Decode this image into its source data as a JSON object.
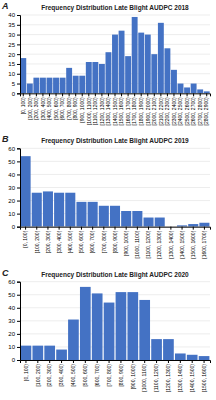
{
  "chart_data": [
    {
      "type": "bar",
      "title": "Frequency Distribution Late Blight AUDPC 2018",
      "annotations": [
        "A"
      ],
      "categories": [
        "[0, 100)",
        "[100, 200)",
        "[200, 300)",
        "[300, 400)",
        "[400, 500)",
        "[500, 600)",
        "[600, 700)",
        "[700, 800)",
        "[800, 900)",
        "[900, 1000)",
        "[1000, 1100)",
        "[1100, 1200)",
        "[1200, 1300)",
        "[1300, 1400)",
        "[1400, 1500)",
        "[1500, 1600)",
        "[1600, 1700)",
        "[1700, 1800)",
        "[1800, 1900)",
        "[1900, 2000)",
        "[2000, 2100)",
        "[2100, 2200)",
        "[2200, 2300)",
        "[2300, 2400)",
        "[2400, 2500)",
        "[2500, 2600)",
        "[2600, 2700)",
        "[2700, 2800)",
        "[2800, 2900)"
      ],
      "values": [
        18,
        5,
        8,
        8,
        8,
        8,
        8,
        13,
        9,
        9,
        16,
        16,
        15,
        21,
        30,
        32,
        19,
        39,
        31,
        30,
        20,
        36,
        23,
        12,
        5,
        3,
        5,
        2,
        1
      ],
      "color": "#4472C4",
      "ylim": [
        0,
        40
      ],
      "yticks": [
        0,
        5,
        10,
        15,
        20,
        25,
        30,
        35,
        40
      ],
      "grid": true
    },
    {
      "type": "bar",
      "title": "Frequency Distribution Late Blight AUDPC 2019",
      "annotations": [
        "B"
      ],
      "categories": [
        "[0, 100)",
        "[100, 200)",
        "[200, 300)",
        "[300, 400)",
        "[400, 500)",
        "[500, 600)",
        "[600, 700)",
        "[700, 800)",
        "[800, 900)",
        "[900, 1000)",
        "[1000, 1100)",
        "[1100, 1200)",
        "[1200, 1300)",
        "[1300, 1400)",
        "[1400, 1500)",
        "[1500, 1600)",
        "[1600, 1700)"
      ],
      "values": [
        54,
        26,
        27,
        26,
        26,
        19,
        19,
        16,
        16,
        12,
        12,
        7,
        7,
        0,
        1,
        2,
        3
      ],
      "color": "#4472C4",
      "ylim": [
        0,
        60
      ],
      "yticks": [
        0,
        10,
        20,
        30,
        40,
        50,
        60
      ],
      "grid": true
    },
    {
      "type": "bar",
      "title": "Frequency Distribution Late Blight AUDPC 2020",
      "annotations": [
        "C"
      ],
      "categories": [
        "[0, 100)",
        "[100, 200)",
        "[200, 300)",
        "[300, 400)",
        "[400, 500)",
        "[500, 600)",
        "[600, 700)",
        "[700, 800)",
        "[800, 900)",
        "[900, 1000)",
        "[1000, 1100)",
        "[1100, 1200)",
        "[1200, 1300)",
        "[1300, 1400)",
        "[1400, 1500)",
        "[1500, 1600)"
      ],
      "values": [
        11,
        11,
        11,
        8,
        31,
        56,
        51,
        44,
        52,
        52,
        46,
        16,
        16,
        5,
        4,
        3
      ],
      "color": "#4472C4",
      "ylim": [
        0,
        60
      ],
      "yticks": [
        0,
        10,
        20,
        30,
        40,
        50,
        60
      ],
      "grid": true
    }
  ]
}
